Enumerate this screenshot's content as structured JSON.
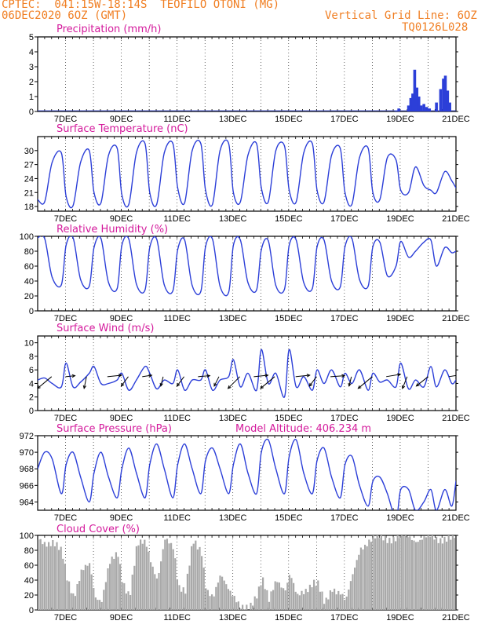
{
  "header": {
    "line1_left": "CPTEC:  041:15W-18:14S  TEOFILO OTONI (MG)",
    "line2_left": "06DEC2020 6OZ (GMT)",
    "line2_right": "Vertical Grid Line: 6OZ",
    "line3_right": "TQ0126L028"
  },
  "colors": {
    "header": "#f07e22",
    "title": "#d41a9c",
    "line": "#2c3fd8",
    "bars": "#2c3fd8",
    "cloud": "#a9a9a9",
    "arrow": "#000000"
  },
  "x_axis": {
    "tick_labels": [
      "7DEC",
      "9DEC",
      "11DEC",
      "13DEC",
      "15DEC",
      "17DEC",
      "19DEC",
      "21DEC"
    ],
    "tick_days": [
      1,
      3,
      5,
      7,
      9,
      11,
      13,
      15
    ],
    "range_days": [
      0,
      15
    ]
  },
  "chart_data": [
    {
      "type": "bar",
      "title": "Precipitation (mm/h)",
      "ylim": [
        0,
        5
      ],
      "yticks": [
        0,
        1,
        2,
        3,
        4,
        5
      ],
      "x_days": [
        12.85,
        12.95,
        13.3,
        13.38,
        13.45,
        13.52,
        13.6,
        13.67,
        13.75,
        13.85,
        13.95,
        14.05,
        14.3,
        14.45,
        14.55,
        14.62,
        14.7,
        14.78
      ],
      "values": [
        0.05,
        0.2,
        0.4,
        0.9,
        1.2,
        2.8,
        1.6,
        1.0,
        0.4,
        0.5,
        0.3,
        0.2,
        0.6,
        1.5,
        2.2,
        2.4,
        1.4,
        0.6
      ]
    },
    {
      "type": "line",
      "title": "Surface Temperature (nC)",
      "ylim": [
        17,
        33
      ],
      "yticks": [
        18,
        21,
        24,
        27,
        30
      ],
      "x_days": [
        0.0,
        0.25,
        0.52,
        0.85,
        1.02,
        1.27,
        1.54,
        1.85,
        2.02,
        2.27,
        2.54,
        2.85,
        3.02,
        3.27,
        3.54,
        3.85,
        4.02,
        4.27,
        4.54,
        4.85,
        5.02,
        5.27,
        5.54,
        5.85,
        6.02,
        6.27,
        6.54,
        6.85,
        7.02,
        7.27,
        7.54,
        7.85,
        8.02,
        8.27,
        8.54,
        8.85,
        9.02,
        9.27,
        9.54,
        9.85,
        10.02,
        10.27,
        10.54,
        10.85,
        11.02,
        11.27,
        11.54,
        11.85,
        12.02,
        12.27,
        12.54,
        12.85,
        13.02,
        13.3,
        13.55,
        13.85,
        14.1,
        14.3,
        14.6,
        14.85,
        15.0
      ],
      "values": [
        19.5,
        19.0,
        27.5,
        29.5,
        20.2,
        18.2,
        27.5,
        30.0,
        21.0,
        18.8,
        29.0,
        30.5,
        20.5,
        18.5,
        29.5,
        31.5,
        21.0,
        18.5,
        29.5,
        31.5,
        22.0,
        18.8,
        30.0,
        31.5,
        21.5,
        18.5,
        30.0,
        31.5,
        21.0,
        19.0,
        29.0,
        31.5,
        22.0,
        19.0,
        30.0,
        31.0,
        21.5,
        19.0,
        29.5,
        31.5,
        21.5,
        19.0,
        29.0,
        30.5,
        21.0,
        18.5,
        28.5,
        30.5,
        21.0,
        19.5,
        28.5,
        28.0,
        21.5,
        21.0,
        26.5,
        22.5,
        21.5,
        21.0,
        25.5,
        23.5,
        22.0
      ]
    },
    {
      "type": "line",
      "title": "Relative Humidity (%)",
      "ylim": [
        0,
        100
      ],
      "yticks": [
        0,
        20,
        40,
        60,
        80,
        100
      ],
      "x_days": [
        0.0,
        0.25,
        0.52,
        0.85,
        1.02,
        1.27,
        1.54,
        1.85,
        2.02,
        2.27,
        2.54,
        2.85,
        3.02,
        3.27,
        3.54,
        3.85,
        4.02,
        4.27,
        4.54,
        4.85,
        5.02,
        5.27,
        5.54,
        5.85,
        6.02,
        6.27,
        6.54,
        6.85,
        7.02,
        7.27,
        7.54,
        7.85,
        8.02,
        8.27,
        8.54,
        8.85,
        9.02,
        9.27,
        9.54,
        9.85,
        10.02,
        10.27,
        10.54,
        10.85,
        11.02,
        11.27,
        11.54,
        11.85,
        12.02,
        12.27,
        12.54,
        12.85,
        13.02,
        13.3,
        13.55,
        13.85,
        14.1,
        14.3,
        14.6,
        14.85,
        15.0
      ],
      "values": [
        98,
        97,
        45,
        35,
        88,
        98,
        42,
        33,
        85,
        97,
        38,
        30,
        88,
        96,
        36,
        28,
        85,
        96,
        35,
        27,
        82,
        95,
        34,
        26,
        86,
        96,
        33,
        25,
        88,
        95,
        38,
        28,
        82,
        94,
        34,
        29,
        88,
        95,
        38,
        30,
        86,
        95,
        40,
        32,
        86,
        97,
        42,
        33,
        86,
        92,
        47,
        60,
        93,
        72,
        80,
        92,
        95,
        60,
        85,
        78,
        80
      ]
    },
    {
      "type": "line",
      "title": "Surface Wind (m/s)",
      "ylim": [
        0,
        11
      ],
      "yticks": [
        0,
        2,
        4,
        6,
        8,
        10
      ],
      "x_days": [
        0.0,
        0.25,
        0.52,
        0.85,
        1.02,
        1.27,
        1.54,
        1.85,
        2.02,
        2.27,
        2.54,
        2.85,
        3.02,
        3.27,
        3.54,
        3.85,
        4.02,
        4.27,
        4.54,
        4.85,
        5.02,
        5.27,
        5.54,
        5.85,
        6.02,
        6.27,
        6.54,
        6.85,
        7.02,
        7.27,
        7.54,
        7.85,
        8.02,
        8.27,
        8.54,
        8.85,
        9.02,
        9.27,
        9.54,
        9.85,
        10.02,
        10.27,
        10.54,
        10.85,
        11.02,
        11.27,
        11.54,
        11.85,
        12.02,
        12.27,
        12.54,
        12.85,
        13.02,
        13.3,
        13.55,
        13.85,
        14.1,
        14.3,
        14.6,
        14.85,
        15.0
      ],
      "values": [
        4.5,
        4.8,
        4.0,
        3.5,
        7.0,
        3.5,
        4.2,
        5.5,
        6.5,
        4.0,
        4.0,
        4.5,
        5.5,
        3.0,
        4.5,
        6.5,
        5.5,
        3.2,
        4.5,
        4.0,
        6.0,
        3.0,
        4.5,
        4.5,
        6.0,
        3.0,
        4.5,
        5.0,
        7.5,
        3.5,
        5.5,
        3.0,
        9.0,
        4.0,
        5.5,
        2.0,
        9.0,
        3.5,
        5.0,
        3.0,
        6.0,
        4.0,
        6.0,
        3.5,
        5.5,
        4.0,
        6.0,
        3.0,
        5.5,
        4.2,
        4.5,
        3.5,
        7.0,
        3.2,
        4.5,
        3.5,
        6.5,
        3.5,
        6.0,
        4.0,
        4.5
      ],
      "vectors": {
        "x_days": [
          0.5,
          1.0,
          1.75,
          2.5,
          3.25,
          3.75,
          4.5,
          5.25,
          5.75,
          6.5,
          7.25,
          7.75,
          8.5,
          9.25,
          10.0,
          10.5,
          11.25,
          12.0,
          12.5,
          13.25,
          14.0,
          14.75
        ],
        "u": [
          -3.0,
          2.0,
          -0.5,
          3.0,
          -1.5,
          2.0,
          -0.5,
          -1.5,
          2.5,
          -1.0,
          -2.5,
          3.0,
          -3.0,
          3.0,
          -1.5,
          3.0,
          -0.5,
          -3.0,
          3.0,
          -1.0,
          -2.5,
          3.0
        ],
        "v": [
          -2.5,
          0.2,
          -2.5,
          0.3,
          -2.0,
          0.3,
          -2.0,
          -2.0,
          0.2,
          -2.0,
          -2.5,
          0.3,
          -2.5,
          0.3,
          -2.0,
          0.2,
          -2.0,
          -2.5,
          0.5,
          -2.5,
          -2.0,
          0.5
        ]
      }
    },
    {
      "type": "line",
      "title": "Surface Pressure (hPa)",
      "annotation": "Model Altitude: 406.234 m",
      "ylim": [
        963,
        972
      ],
      "yticks": [
        964,
        966,
        968,
        970,
        972
      ],
      "x_days": [
        0.0,
        0.25,
        0.52,
        0.85,
        1.02,
        1.27,
        1.54,
        1.85,
        2.02,
        2.27,
        2.54,
        2.85,
        3.02,
        3.27,
        3.54,
        3.85,
        4.02,
        4.27,
        4.54,
        4.85,
        5.02,
        5.27,
        5.54,
        5.85,
        6.02,
        6.27,
        6.54,
        6.85,
        7.02,
        7.27,
        7.54,
        7.85,
        8.02,
        8.27,
        8.54,
        8.85,
        9.02,
        9.27,
        9.54,
        9.85,
        10.02,
        10.27,
        10.54,
        10.85,
        11.02,
        11.27,
        11.54,
        11.85,
        12.02,
        12.27,
        12.54,
        12.85,
        13.02,
        13.3,
        13.55,
        13.85,
        14.1,
        14.3,
        14.6,
        14.85,
        15.0
      ],
      "values": [
        968.0,
        970.0,
        969.2,
        965.0,
        968.5,
        970.0,
        967.0,
        964.0,
        967.5,
        970.0,
        967.0,
        964.5,
        968.0,
        970.5,
        967.5,
        964.5,
        968.5,
        971.0,
        968.0,
        964.5,
        968.5,
        971.0,
        968.0,
        965.0,
        969.0,
        970.5,
        968.0,
        965.0,
        968.5,
        971.0,
        967.5,
        965.0,
        970.0,
        971.5,
        968.0,
        965.0,
        969.5,
        971.5,
        967.5,
        965.0,
        969.0,
        970.5,
        967.0,
        964.5,
        968.5,
        969.5,
        966.0,
        963.5,
        966.5,
        967.0,
        965.0,
        962.0,
        965.5,
        965.5,
        963.0,
        964.0,
        965.5,
        963.0,
        965.5,
        963.5,
        966.5
      ]
    },
    {
      "type": "area",
      "title": "Cloud Cover (%)",
      "ylim": [
        0,
        100
      ],
      "yticks": [
        0,
        20,
        40,
        60,
        80,
        100
      ],
      "x_days": [
        0.0,
        0.25,
        0.52,
        0.85,
        1.02,
        1.27,
        1.54,
        1.85,
        2.02,
        2.27,
        2.54,
        2.85,
        3.02,
        3.27,
        3.54,
        3.85,
        4.02,
        4.27,
        4.54,
        4.85,
        5.02,
        5.27,
        5.54,
        5.85,
        6.02,
        6.27,
        6.54,
        6.85,
        7.02,
        7.27,
        7.54,
        7.85,
        8.02,
        8.27,
        8.54,
        8.85,
        9.02,
        9.27,
        9.54,
        9.85,
        10.02,
        10.27,
        10.54,
        10.85,
        11.02,
        11.27,
        11.54,
        11.85,
        12.02,
        12.27,
        12.54,
        12.85,
        13.02,
        13.3,
        13.55,
        13.85,
        14.1,
        14.3,
        14.6,
        14.85,
        15.0
      ],
      "values": [
        95,
        92,
        90,
        75,
        45,
        20,
        50,
        60,
        20,
        15,
        60,
        75,
        40,
        20,
        85,
        92,
        70,
        40,
        92,
        85,
        35,
        25,
        90,
        80,
        30,
        15,
        45,
        30,
        20,
        0,
        0,
        25,
        45,
        10,
        40,
        30,
        50,
        15,
        25,
        40,
        35,
        5,
        30,
        25,
        10,
        45,
        85,
        92,
        95,
        98,
        97,
        96,
        97,
        98,
        95,
        96,
        97,
        95,
        98,
        96,
        97
      ]
    }
  ]
}
